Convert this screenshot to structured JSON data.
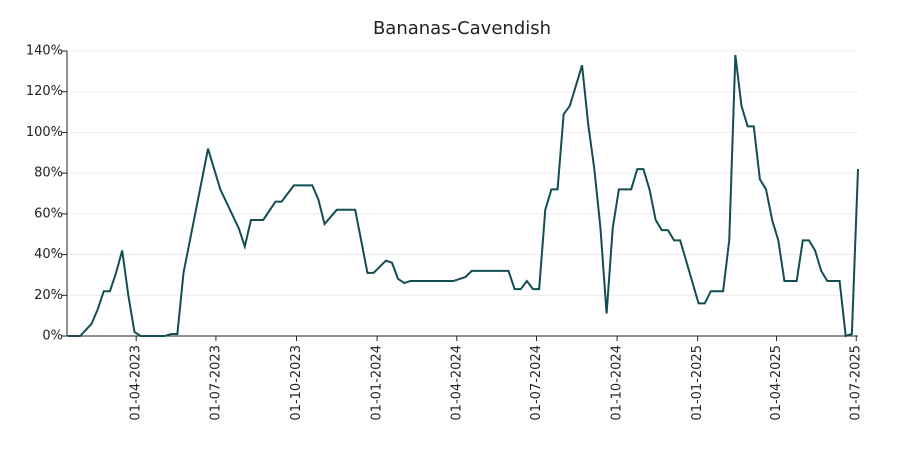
{
  "chart_data": {
    "type": "line",
    "title": "Bananas-Cavendish",
    "x": [
      "2023-01-13",
      "2023-01-27",
      "2023-02-09",
      "2023-02-16",
      "2023-02-23",
      "2023-03-02",
      "2023-03-09",
      "2023-03-16",
      "2023-03-23",
      "2023-03-30",
      "2023-04-06",
      "2023-05-04",
      "2023-05-11",
      "2023-05-18",
      "2023-05-25",
      "2023-06-22",
      "2023-07-06",
      "2023-07-27",
      "2023-08-03",
      "2023-08-10",
      "2023-08-24",
      "2023-09-07",
      "2023-09-14",
      "2023-09-28",
      "2023-10-19",
      "2023-10-26",
      "2023-11-02",
      "2023-11-16",
      "2023-12-07",
      "2023-12-21",
      "2023-12-28",
      "2024-01-11",
      "2024-01-18",
      "2024-01-25",
      "2024-02-01",
      "2024-02-08",
      "2024-03-28",
      "2024-04-11",
      "2024-04-18",
      "2024-05-30",
      "2024-06-06",
      "2024-06-13",
      "2024-06-20",
      "2024-06-27",
      "2024-07-04",
      "2024-07-11",
      "2024-07-18",
      "2024-07-25",
      "2024-08-01",
      "2024-08-08",
      "2024-08-22",
      "2024-08-29",
      "2024-09-05",
      "2024-09-12",
      "2024-09-19",
      "2024-09-26",
      "2024-10-03",
      "2024-10-17",
      "2024-10-24",
      "2024-10-31",
      "2024-11-07",
      "2024-11-14",
      "2024-11-21",
      "2024-11-28",
      "2024-12-05",
      "2024-12-12",
      "2025-01-02",
      "2025-01-09",
      "2025-01-16",
      "2025-01-30",
      "2025-02-06",
      "2025-02-13",
      "2025-02-20",
      "2025-02-27",
      "2025-03-06",
      "2025-03-13",
      "2025-03-20",
      "2025-03-27",
      "2025-04-03",
      "2025-04-10",
      "2025-04-24",
      "2025-05-01",
      "2025-05-08",
      "2025-05-15",
      "2025-05-22",
      "2025-05-29",
      "2025-06-12",
      "2025-06-19",
      "2025-06-26",
      "2025-07-03"
    ],
    "series": [
      {
        "name": "Bananas-Cavendish",
        "color": "#134e52",
        "values": [
          0,
          0,
          6,
          13,
          22,
          22,
          31,
          42,
          20,
          2,
          0,
          0,
          1,
          1,
          31,
          92,
          72,
          53,
          44,
          57,
          57,
          66,
          66,
          74,
          74,
          67,
          55,
          62,
          62,
          31,
          31,
          37,
          36,
          28,
          26,
          27,
          27,
          29,
          32,
          32,
          23,
          23,
          27,
          23,
          23,
          62,
          72,
          72,
          109,
          113,
          133,
          104,
          82,
          53,
          11,
          53,
          72,
          72,
          82,
          82,
          72,
          57,
          52,
          52,
          47,
          47,
          16,
          16,
          22,
          22,
          47,
          138,
          113,
          103,
          103,
          77,
          72,
          57,
          47,
          27,
          27,
          47,
          47,
          42,
          32,
          27,
          27,
          0,
          1,
          82
        ]
      }
    ],
    "xlim": [
      "2023-01-12",
      "2025-07-03"
    ],
    "xticks": [
      {
        "value": "2023-04-01",
        "label": "01-04-2023"
      },
      {
        "value": "2023-07-01",
        "label": "01-07-2023"
      },
      {
        "value": "2023-10-01",
        "label": "01-10-2023"
      },
      {
        "value": "2024-01-01",
        "label": "01-01-2024"
      },
      {
        "value": "2024-04-01",
        "label": "01-04-2024"
      },
      {
        "value": "2024-07-01",
        "label": "01-07-2024"
      },
      {
        "value": "2024-10-01",
        "label": "01-10-2024"
      },
      {
        "value": "2025-01-01",
        "label": "01-01-2025"
      },
      {
        "value": "2025-04-01",
        "label": "01-04-2025"
      },
      {
        "value": "2025-07-01",
        "label": "01-07-2025"
      }
    ],
    "ylim": [
      0,
      140
    ],
    "yticks": [
      {
        "value": 0,
        "label": "0%"
      },
      {
        "value": 20,
        "label": "20%"
      },
      {
        "value": 40,
        "label": "40%"
      },
      {
        "value": 60,
        "label": "60%"
      },
      {
        "value": 80,
        "label": "80%"
      },
      {
        "value": 100,
        "label": "100%"
      },
      {
        "value": 120,
        "label": "120%"
      },
      {
        "value": 140,
        "label": "140%"
      }
    ],
    "grid": true
  }
}
